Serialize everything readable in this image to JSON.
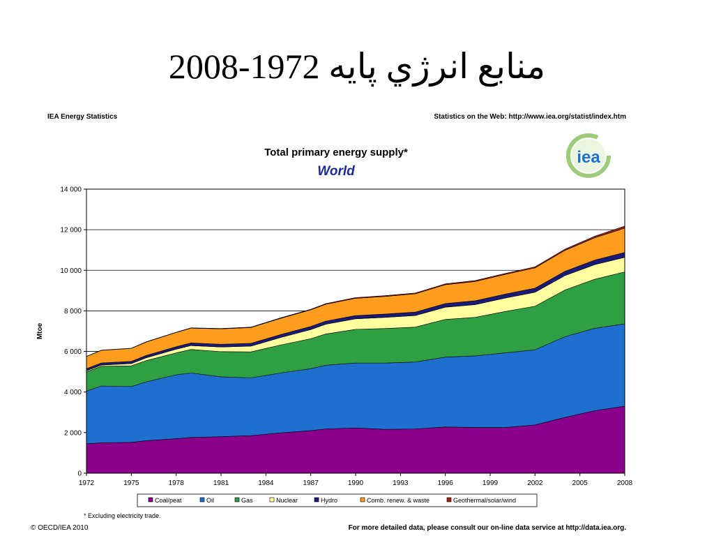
{
  "slide": {
    "title": "منابع انرژي پايه 1972-2008",
    "header_left": "IEA Energy Statistics",
    "header_right": "Statistics on the Web: http://www.iea.org/statist/index.htm",
    "logo_text": "iea",
    "footnote": "* Excluding electricity trade.",
    "copyright": "© OECD/IEA 2010",
    "more_data": "For more detailed data, please consult our on-line data service at http://data.iea.org."
  },
  "colors": {
    "Coal/peat": "#8B008B",
    "Oil": "#1E6FD0",
    "Gas": "#2EA043",
    "Nuclear": "#FFFFA0",
    "Hydro": "#1A1A78",
    "Comb. renew. & waste": "#FF9D1F",
    "Geothermal/solar/wind": "#A02010"
  },
  "chart_data": {
    "type": "area",
    "stacked": true,
    "title": "Total primary energy supply*",
    "subtitle": "World",
    "ylabel": "Mtoe",
    "xlabel": "",
    "ylim": [
      0,
      14000
    ],
    "yticks": [
      0,
      2000,
      4000,
      6000,
      8000,
      10000,
      12000,
      14000
    ],
    "ytick_labels": [
      "0",
      "2 000",
      "4 000",
      "6 000",
      "8 000",
      "10 000",
      "12 000",
      "14 000"
    ],
    "xticks": [
      "1972",
      "1975",
      "1978",
      "1981",
      "1984",
      "1987",
      "1990",
      "1993",
      "1996",
      "1999",
      "2002",
      "2005",
      "2008"
    ],
    "grid": "horizontal",
    "legend_position": "bottom",
    "x": [
      1972,
      1973,
      1975,
      1976,
      1978,
      1979,
      1981,
      1983,
      1985,
      1987,
      1988,
      1990,
      1992,
      1994,
      1996,
      1998,
      2000,
      2002,
      2004,
      2006,
      2008
    ],
    "series": [
      {
        "name": "Coal/peat",
        "values": [
          1450,
          1500,
          1520,
          1600,
          1700,
          1760,
          1800,
          1850,
          1990,
          2100,
          2180,
          2230,
          2160,
          2180,
          2280,
          2250,
          2250,
          2380,
          2750,
          3080,
          3300
        ]
      },
      {
        "name": "Oil",
        "values": [
          2600,
          2800,
          2750,
          2900,
          3150,
          3180,
          2950,
          2850,
          2950,
          3050,
          3140,
          3200,
          3270,
          3300,
          3440,
          3530,
          3680,
          3700,
          3980,
          4060,
          4060
        ]
      },
      {
        "name": "Gas",
        "values": [
          950,
          970,
          1020,
          1050,
          1080,
          1160,
          1240,
          1280,
          1380,
          1480,
          1540,
          1660,
          1700,
          1720,
          1860,
          1900,
          2040,
          2150,
          2300,
          2420,
          2560
        ]
      },
      {
        "name": "Nuclear",
        "values": [
          50,
          60,
          110,
          140,
          180,
          190,
          230,
          280,
          370,
          450,
          480,
          520,
          550,
          570,
          600,
          630,
          660,
          690,
          710,
          720,
          720
        ]
      },
      {
        "name": "Hydro",
        "values": [
          100,
          105,
          110,
          115,
          125,
          130,
          135,
          140,
          145,
          150,
          155,
          160,
          165,
          170,
          180,
          190,
          195,
          200,
          210,
          225,
          240
        ]
      },
      {
        "name": "Comb. renew. & waste",
        "values": [
          600,
          620,
          640,
          660,
          700,
          730,
          760,
          780,
          800,
          820,
          830,
          850,
          870,
          900,
          930,
          950,
          970,
          1000,
          1030,
          1100,
          1200
        ]
      },
      {
        "name": "Geothermal/solar/wind",
        "values": [
          10,
          10,
          10,
          12,
          14,
          15,
          17,
          20,
          25,
          30,
          32,
          35,
          38,
          40,
          42,
          45,
          48,
          52,
          60,
          75,
          100
        ]
      }
    ]
  }
}
